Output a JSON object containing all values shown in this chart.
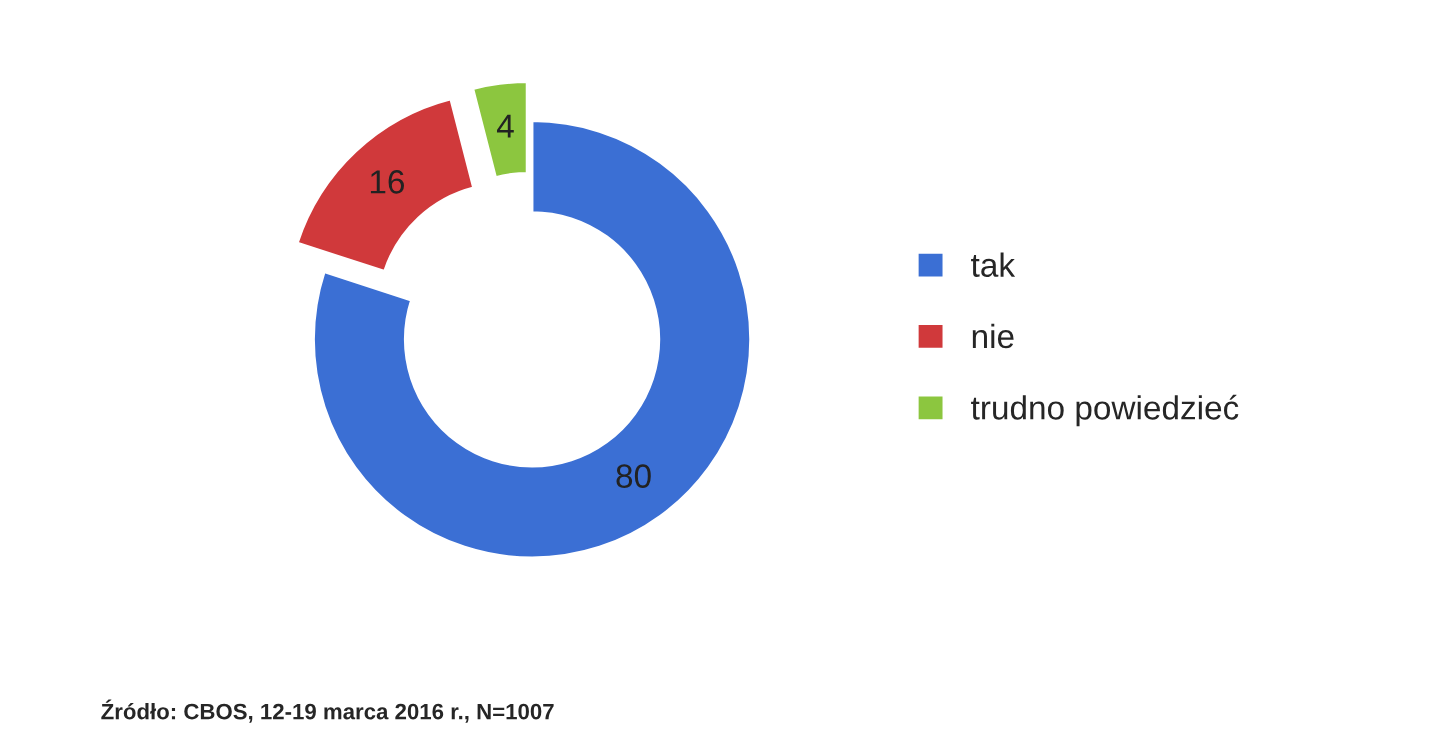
{
  "chart_data": {
    "type": "donut",
    "categories": [
      "tak",
      "nie",
      "trudno powiedzieć"
    ],
    "values": [
      80,
      16,
      4
    ],
    "colors": [
      "#3b6fd4",
      "#d0393b",
      "#8cc63f"
    ],
    "data_labels": true,
    "legend": "right",
    "annotations": [
      "Źródło: CBOS, 12-19 marca 2016 r., N=1007"
    ]
  }
}
